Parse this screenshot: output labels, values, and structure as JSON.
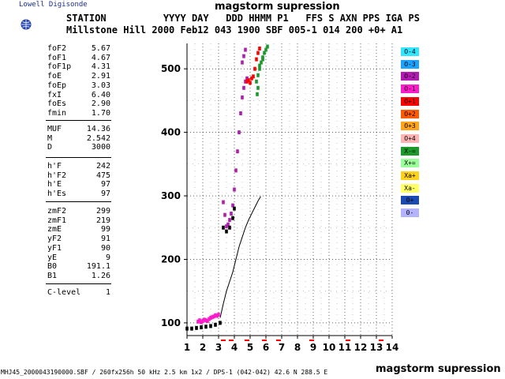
{
  "logo": {
    "text": "Lowell Digisonde",
    "icon": "globe-icon"
  },
  "title_top": "magstorm supression",
  "header": {
    "line1": "STATION          YYYY DAY   DDD HHMM P1   FFS S AXN PPS IGA PS",
    "line2": "Millstone Hill 2000 Feb12 043 1900 SBF 005-1 014 200 +0+ A1"
  },
  "params": {
    "group1": [
      {
        "label": "foF2",
        "value": "5.67"
      },
      {
        "label": "foF1",
        "value": "4.67"
      },
      {
        "label": "foF1p",
        "value": "4.31"
      },
      {
        "label": "foE",
        "value": "2.91"
      },
      {
        "label": "foEp",
        "value": "3.03"
      },
      {
        "label": "fxI",
        "value": "6.40"
      },
      {
        "label": "foEs",
        "value": "2.90"
      },
      {
        "label": "fmin",
        "value": "1.70"
      }
    ],
    "group2": [
      {
        "label": "MUF",
        "value": "14.36"
      },
      {
        "label": "M",
        "value": "2.542"
      },
      {
        "label": "D",
        "value": "3000"
      }
    ],
    "group3": [
      {
        "label": "h'F",
        "value": "242"
      },
      {
        "label": "h'F2",
        "value": "475"
      },
      {
        "label": "h'E",
        "value": "97"
      },
      {
        "label": "h'Es",
        "value": "97"
      }
    ],
    "group4": [
      {
        "label": "zmF2",
        "value": "299"
      },
      {
        "label": "zmF1",
        "value": "219"
      },
      {
        "label": "zmE",
        "value": "99"
      },
      {
        "label": "yF2",
        "value": "91"
      },
      {
        "label": "yF1",
        "value": "90"
      },
      {
        "label": "yE",
        "value": "9"
      },
      {
        "label": "B0",
        "value": "191.1"
      },
      {
        "label": "B1",
        "value": "1.26"
      }
    ],
    "group5": [
      {
        "label": "C-level",
        "value": "1"
      }
    ]
  },
  "legend": [
    {
      "label": "O-4",
      "color": "#33e6ff"
    },
    {
      "label": "O-3",
      "color": "#1aa3ff"
    },
    {
      "label": "O-2",
      "color": "#b31ab3"
    },
    {
      "label": "O-1",
      "color": "#ff1acc"
    },
    {
      "label": "O+1",
      "color": "#ff0000"
    },
    {
      "label": "O+2",
      "color": "#ff5a00"
    },
    {
      "label": "O+3",
      "color": "#ffa31a"
    },
    {
      "label": "O+4",
      "color": "#ffb3b3"
    },
    {
      "label": "X-=",
      "color": "#1a9a2a"
    },
    {
      "label": "X+=",
      "color": "#99ff99"
    },
    {
      "label": "Xa+",
      "color": "#ffd21a"
    },
    {
      "label": "Xa-",
      "color": "#ffff66"
    },
    {
      "label": "0+",
      "color": "#1a4ab3"
    },
    {
      "label": "0-",
      "color": "#b3b3ff"
    }
  ],
  "footer_left": "MHJ45_2000043190000.SBF / 260fx256h 50 kHz 2.5 km 1x2 / DPS-1 (042-042) 42.6 N 288.5 E",
  "footer_right": "magstorm supression",
  "chart_data": {
    "type": "scatter",
    "xlim": [
      1,
      14
    ],
    "ylim": [
      80,
      540
    ],
    "x_ticks": [
      "1",
      "2",
      "3",
      "4",
      "5",
      "6",
      "7",
      "8",
      "9",
      "10",
      "11",
      "12",
      "13",
      "14"
    ],
    "y_ticks": [
      "100",
      "200",
      "300",
      "400",
      "500"
    ],
    "grid": true,
    "series": [
      {
        "color": "#ff1acc",
        "points": [
          [
            1.7,
            102
          ],
          [
            1.8,
            104
          ],
          [
            1.9,
            101
          ],
          [
            2.0,
            103
          ],
          [
            2.1,
            105
          ],
          [
            2.2,
            104
          ],
          [
            2.3,
            103
          ],
          [
            2.4,
            106
          ],
          [
            2.5,
            108
          ],
          [
            2.6,
            109
          ],
          [
            2.7,
            110
          ],
          [
            2.8,
            112
          ],
          [
            2.9,
            111
          ],
          [
            3.0,
            113
          ]
        ]
      },
      {
        "color": "#b31ab3",
        "points": [
          [
            3.3,
            290
          ],
          [
            3.4,
            270
          ],
          [
            3.5,
            252
          ],
          [
            3.6,
            255
          ],
          [
            3.7,
            262
          ],
          [
            3.8,
            272
          ],
          [
            3.9,
            285
          ],
          [
            4.0,
            310
          ],
          [
            4.1,
            340
          ],
          [
            4.2,
            370
          ],
          [
            4.3,
            400
          ],
          [
            4.4,
            430
          ],
          [
            4.5,
            455
          ],
          [
            4.6,
            470
          ],
          [
            4.7,
            480
          ],
          [
            4.8,
            485
          ],
          [
            4.6,
            520
          ],
          [
            4.7,
            530
          ],
          [
            4.5,
            510
          ]
        ]
      },
      {
        "color": "#ff0000",
        "points": [
          [
            4.8,
            480
          ],
          [
            4.9,
            482
          ],
          [
            5.0,
            478
          ],
          [
            5.1,
            485
          ],
          [
            5.2,
            488
          ],
          [
            5.3,
            500
          ],
          [
            5.4,
            515
          ],
          [
            5.5,
            525
          ],
          [
            5.6,
            532
          ]
        ]
      },
      {
        "color": "#1a9a2a",
        "points": [
          [
            5.4,
            480
          ],
          [
            5.5,
            490
          ],
          [
            5.6,
            500
          ],
          [
            5.7,
            510
          ],
          [
            5.8,
            518
          ],
          [
            5.9,
            525
          ],
          [
            6.0,
            530
          ],
          [
            6.1,
            535
          ],
          [
            5.5,
            470
          ],
          [
            5.45,
            460
          ],
          [
            5.6,
            505
          ],
          [
            5.8,
            515
          ]
        ]
      },
      {
        "color": "#000000",
        "points": [
          [
            1.0,
            91
          ],
          [
            1.3,
            91
          ],
          [
            1.6,
            92
          ],
          [
            1.9,
            93
          ],
          [
            2.2,
            94
          ],
          [
            2.5,
            95
          ],
          [
            2.8,
            97
          ],
          [
            3.1,
            100
          ],
          [
            3.3,
            250
          ],
          [
            3.5,
            244
          ],
          [
            3.7,
            250
          ],
          [
            3.9,
            265
          ],
          [
            4.0,
            280
          ]
        ]
      }
    ],
    "profile": {
      "color": "#000000",
      "points": [
        [
          3.1,
          108
        ],
        [
          3.3,
          130
        ],
        [
          3.5,
          150
        ],
        [
          3.7,
          165
        ],
        [
          3.9,
          180
        ],
        [
          4.1,
          200
        ],
        [
          4.3,
          220
        ],
        [
          4.5,
          235
        ],
        [
          4.7,
          250
        ],
        [
          4.9,
          262
        ],
        [
          5.1,
          272
        ],
        [
          5.3,
          282
        ],
        [
          5.5,
          292
        ],
        [
          5.67,
          299
        ]
      ]
    }
  }
}
